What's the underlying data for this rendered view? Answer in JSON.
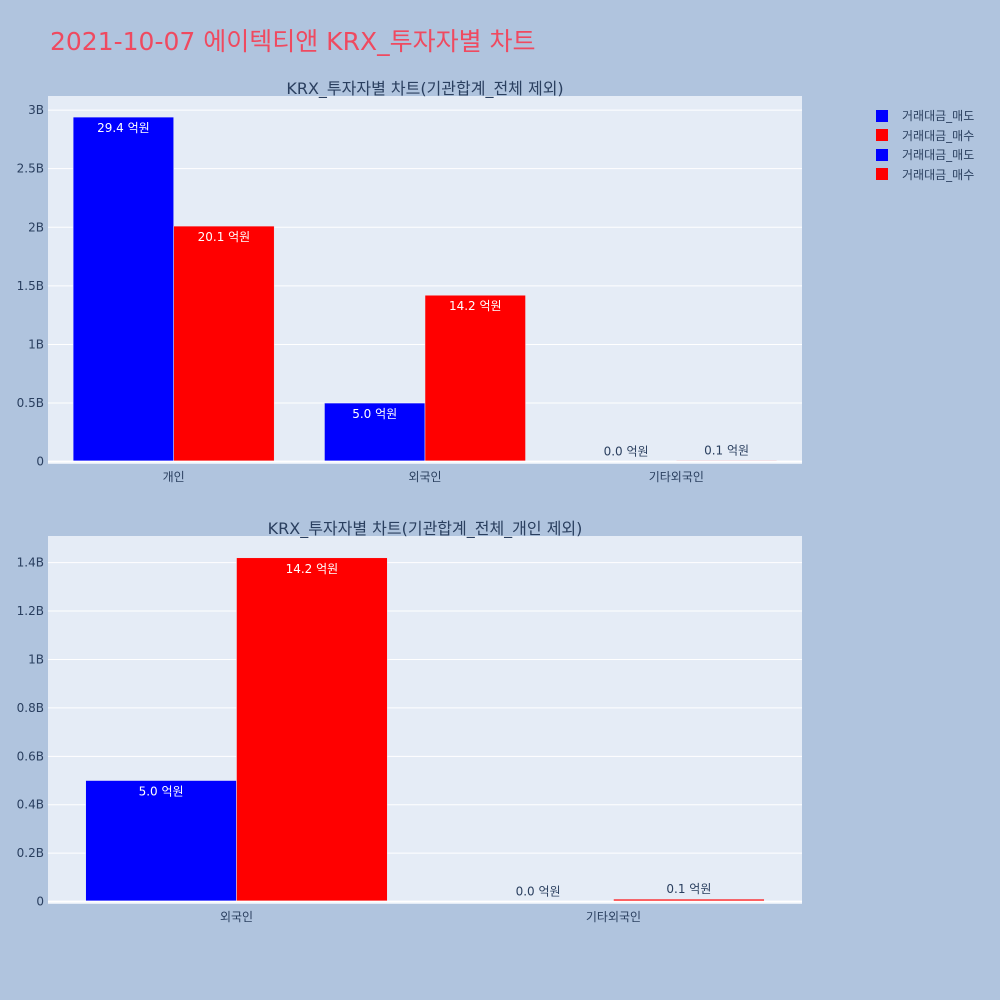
{
  "page": {
    "title": "2021-10-07 에이텍티앤 KRX_투자자별 차트"
  },
  "legend": {
    "items": [
      {
        "label": "거래대금_매도",
        "color": "#0000ff"
      },
      {
        "label": "거래대금_매수",
        "color": "#ff0000"
      },
      {
        "label": "거래대금_매도",
        "color": "#0000ff"
      },
      {
        "label": "거래대금_매수",
        "color": "#ff0000"
      }
    ]
  },
  "chart_data": [
    {
      "type": "bar",
      "title": "KRX_투자자별 차트(기관합계_전체 제외)",
      "categories": [
        "개인",
        "외국인",
        "기타외국인"
      ],
      "series": [
        {
          "name": "거래대금_매도",
          "color": "#0000ff",
          "values": [
            2940000000,
            500000000,
            0
          ],
          "labels": [
            "29.4 억원",
            "5.0 억원",
            "0.0 억원"
          ]
        },
        {
          "name": "거래대금_매수",
          "color": "#ff0000",
          "values": [
            2010000000,
            1420000000,
            10000000
          ],
          "labels": [
            "20.1 억원",
            "14.2 억원",
            "0.1 억원"
          ]
        }
      ],
      "ylim": [
        -20000000,
        3120000000
      ],
      "yticks": [
        0,
        500000000,
        1000000000,
        1500000000,
        2000000000,
        2500000000,
        3000000000
      ],
      "ytick_labels": [
        "0",
        "0.5B",
        "1B",
        "1.5B",
        "2B",
        "2.5B",
        "3B"
      ],
      "grid": true
    },
    {
      "type": "bar",
      "title": "KRX_투자자별 차트(기관합계_전체_개인 제외)",
      "categories": [
        "외국인",
        "기타외국인"
      ],
      "series": [
        {
          "name": "거래대금_매도",
          "color": "#0000ff",
          "values": [
            500000000,
            0
          ],
          "labels": [
            "5.0 억원",
            "0.0 억원"
          ]
        },
        {
          "name": "거래대금_매수",
          "color": "#ff0000",
          "values": [
            1420000000,
            10000000
          ],
          "labels": [
            "14.2 억원",
            "0.1 억원"
          ]
        }
      ],
      "ylim": [
        -10000000,
        1510000000
      ],
      "yticks": [
        0,
        200000000,
        400000000,
        600000000,
        800000000,
        1000000000,
        1200000000,
        1400000000
      ],
      "ytick_labels": [
        "0",
        "0.2B",
        "0.4B",
        "0.6B",
        "0.8B",
        "1B",
        "1.2B",
        "1.4B"
      ],
      "grid": true
    }
  ]
}
